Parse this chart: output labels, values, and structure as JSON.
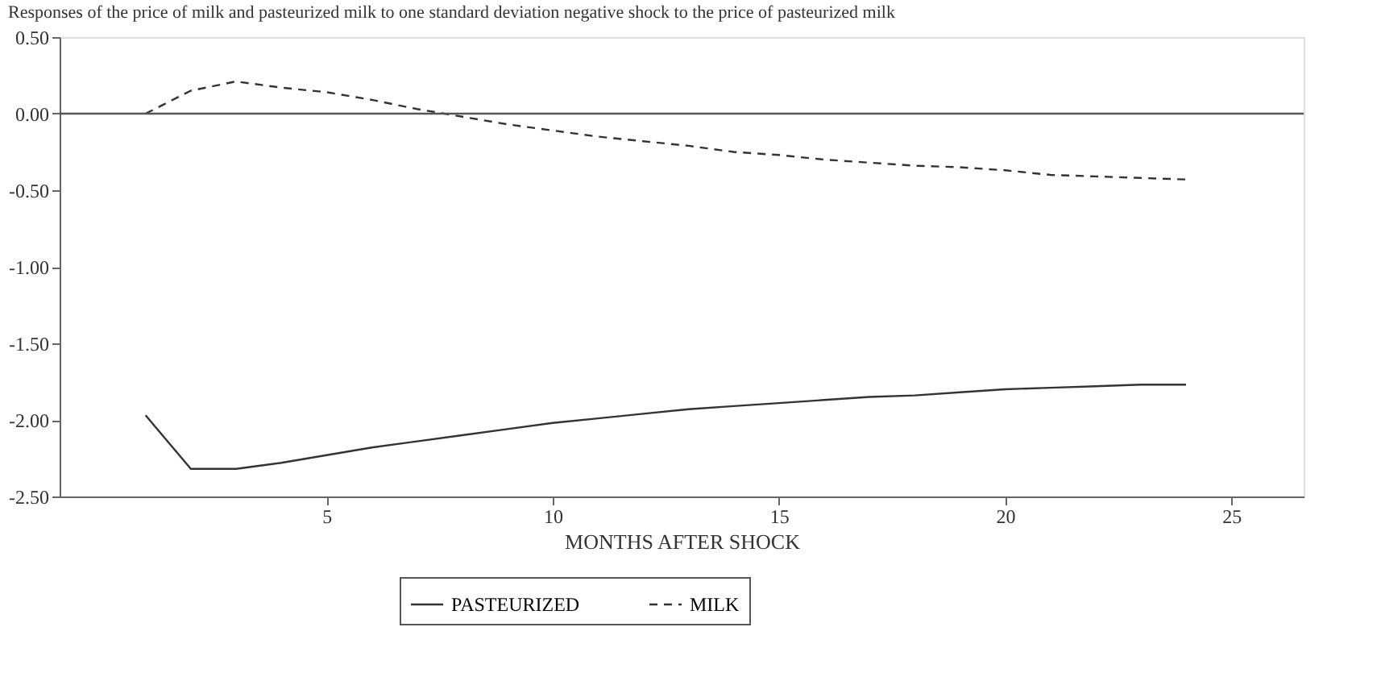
{
  "chart_data": {
    "type": "line",
    "title": "Responses of the price of milk and pasteurized milk to one standard deviation negative shock to the price of pasteurized milk",
    "xlabel": "MONTHS AFTER SHOCK",
    "x": [
      1,
      2,
      3,
      4,
      5,
      6,
      7,
      8,
      9,
      10,
      11,
      12,
      13,
      14,
      15,
      16,
      17,
      18,
      19,
      20,
      21,
      22,
      23,
      24
    ],
    "series": [
      {
        "name": "PASTEURIZED",
        "color": "#333333",
        "line_style": "solid",
        "values": [
          -1.97,
          -2.32,
          -2.32,
          -2.28,
          -2.23,
          -2.18,
          -2.14,
          -2.1,
          -2.06,
          -2.02,
          -1.99,
          -1.96,
          -1.93,
          -1.91,
          -1.89,
          -1.87,
          -1.85,
          -1.84,
          -1.82,
          -1.8,
          -1.79,
          -1.78,
          -1.77,
          -1.77
        ]
      },
      {
        "name": "MILK",
        "color": "#333333",
        "line_style": "dashed",
        "values": [
          0.0,
          0.15,
          0.21,
          0.17,
          0.14,
          0.09,
          0.03,
          -0.02,
          -0.07,
          -0.11,
          -0.15,
          -0.18,
          -0.21,
          -0.25,
          -0.27,
          -0.3,
          -0.32,
          -0.34,
          -0.35,
          -0.37,
          -0.4,
          -0.41,
          -0.42,
          -0.43
        ]
      }
    ],
    "xlim": [
      -0.9,
      26.6
    ],
    "xticks": [
      5,
      10,
      15,
      20,
      25
    ],
    "ylim": [
      -2.5,
      0.5
    ],
    "yticks": [
      {
        "value": -2.5,
        "label": "-2.50"
      },
      {
        "value": -2.0,
        "label": "-2.00"
      },
      {
        "value": -1.5,
        "label": "-1.50"
      },
      {
        "value": -1.0,
        "label": "-1.00"
      },
      {
        "value": -0.5,
        "label": "-0.50"
      },
      {
        "value": 0.0,
        "label": "0.00"
      },
      {
        "value": 0.5,
        "label": "0.50"
      }
    ],
    "ref_lines": [
      {
        "axis": "y",
        "value": 0,
        "color": "#555555"
      }
    ],
    "grid": false,
    "legend": "bottom"
  }
}
